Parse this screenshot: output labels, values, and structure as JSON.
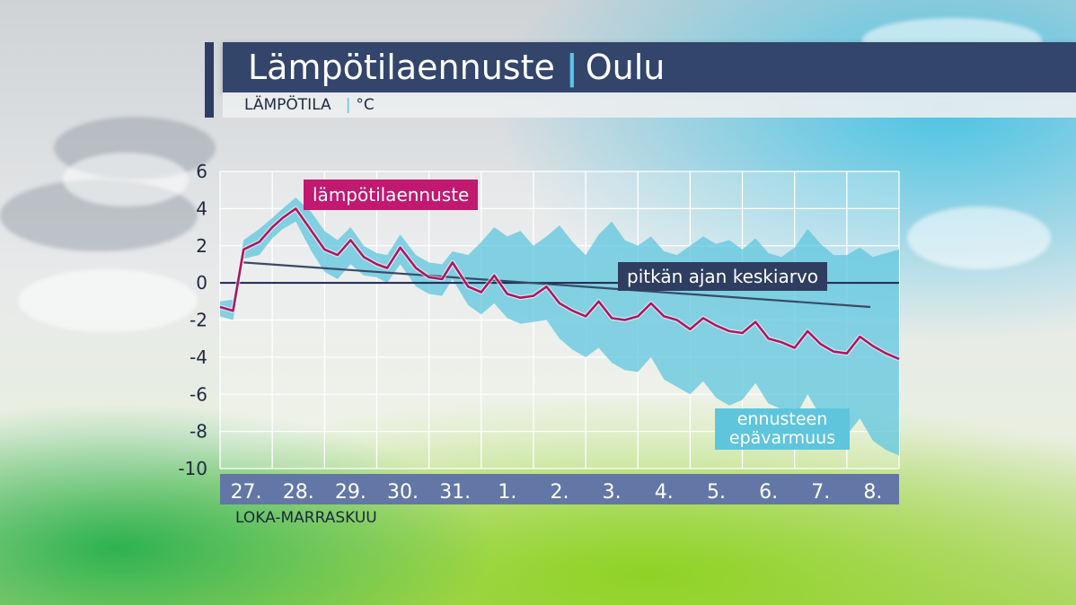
{
  "header": {
    "title": "Lämpötilaennuste",
    "title_separator": "|",
    "location": "Oulu",
    "subtitle": "LÄMPÖTILA",
    "subtitle_separator": "|",
    "unit": "°C"
  },
  "caption": "LOKA-MARRASKUU",
  "labels": {
    "forecast": "lämpötilaennuste",
    "long_term_mean": "pitkän ajan keskiarvo",
    "uncertainty_line1": "ennusteen",
    "uncertainty_line2": "epävarmuus"
  },
  "colors": {
    "forecast_line": "#b3145f",
    "forecast_label_bg": "#c0196f",
    "mean_line": "#3a4a66",
    "zero_line": "#1c2552",
    "uncertainty_band": "#5ec5dd",
    "axis_bar": "#6277a6",
    "title_bar": "#33456b"
  },
  "chart_data": {
    "type": "line",
    "ylim": [
      -10,
      6
    ],
    "yticks": [
      6,
      4,
      2,
      0,
      -2,
      -4,
      -6,
      -8,
      -10
    ],
    "xlim": [
      0,
      13
    ],
    "categories": [
      "27.",
      "28.",
      "29.",
      "30.",
      "31.",
      "1.",
      "2.",
      "3.",
      "4.",
      "5.",
      "6.",
      "7.",
      "8."
    ],
    "grid": true,
    "series": [
      {
        "name": "lämpötilaennuste",
        "x": [
          0,
          0.25,
          0.45,
          0.75,
          1.0,
          1.2,
          1.45,
          1.75,
          2.0,
          2.25,
          2.5,
          2.75,
          3.0,
          3.2,
          3.45,
          3.75,
          4.0,
          4.25,
          4.45,
          4.75,
          5.0,
          5.25,
          5.5,
          5.75,
          6.0,
          6.25,
          6.5,
          6.75,
          7.0,
          7.25,
          7.5,
          7.75,
          8.0,
          8.25,
          8.5,
          8.75,
          9.0,
          9.25,
          9.5,
          9.75,
          10.0,
          10.25,
          10.5,
          10.75,
          11.0,
          11.25,
          11.5,
          11.75,
          12.0,
          12.25,
          12.5,
          12.75,
          13.0
        ],
        "y": [
          -1.3,
          -1.5,
          1.8,
          2.2,
          3.0,
          3.5,
          4.0,
          2.8,
          1.8,
          1.5,
          2.3,
          1.4,
          1.0,
          0.8,
          1.9,
          0.8,
          0.3,
          0.2,
          1.1,
          -0.2,
          -0.5,
          0.4,
          -0.6,
          -0.8,
          -0.7,
          -0.2,
          -1.1,
          -1.5,
          -1.8,
          -1.0,
          -1.9,
          -2.0,
          -1.8,
          -1.1,
          -1.8,
          -2.0,
          -2.5,
          -1.9,
          -2.3,
          -2.6,
          -2.7,
          -2.1,
          -3.0,
          -3.2,
          -3.5,
          -2.6,
          -3.3,
          -3.7,
          -3.8,
          -2.9,
          -3.4,
          -3.8,
          -4.1
        ]
      },
      {
        "name": "pitkän ajan keskiarvo",
        "x": [
          0.45,
          12.45
        ],
        "y": [
          1.1,
          -1.3
        ]
      }
    ],
    "bands": [
      {
        "name": "ennusteen epävarmuus",
        "x": [
          0,
          0.25,
          0.45,
          0.75,
          1.0,
          1.2,
          1.45,
          1.75,
          2.0,
          2.25,
          2.5,
          2.75,
          3.0,
          3.2,
          3.45,
          3.75,
          4.0,
          4.25,
          4.45,
          4.75,
          5.0,
          5.25,
          5.5,
          5.75,
          6.0,
          6.25,
          6.5,
          6.75,
          7.0,
          7.25,
          7.5,
          7.75,
          8.0,
          8.25,
          8.5,
          8.75,
          9.0,
          9.25,
          9.5,
          9.75,
          10.0,
          10.25,
          10.5,
          10.75,
          11.0,
          11.25,
          11.5,
          11.75,
          12.0,
          12.25,
          12.5,
          12.75,
          13.0
        ],
        "upper": [
          -1.0,
          -0.9,
          2.3,
          2.9,
          3.5,
          4.0,
          4.6,
          3.8,
          2.8,
          2.3,
          3.0,
          2.0,
          1.6,
          1.5,
          2.6,
          1.5,
          1.1,
          1.0,
          1.7,
          1.5,
          2.2,
          3.0,
          2.5,
          2.8,
          2.0,
          2.5,
          3.1,
          2.2,
          1.5,
          2.6,
          3.3,
          2.3,
          2.0,
          2.5,
          1.7,
          1.5,
          2.0,
          2.5,
          2.1,
          2.3,
          1.8,
          2.4,
          1.6,
          1.4,
          1.9,
          2.9,
          2.1,
          1.5,
          1.5,
          1.9,
          1.4,
          1.6,
          1.8
        ],
        "lower": [
          -1.8,
          -2.0,
          1.3,
          1.5,
          2.4,
          2.9,
          3.3,
          1.7,
          0.6,
          0.2,
          1.0,
          0.4,
          0.3,
          0.0,
          1.0,
          -0.2,
          -0.6,
          -0.7,
          0.2,
          -1.2,
          -1.7,
          -1.1,
          -1.9,
          -2.2,
          -2.1,
          -2.0,
          -3.0,
          -3.6,
          -4.0,
          -3.5,
          -4.3,
          -4.7,
          -4.8,
          -4.0,
          -5.2,
          -5.6,
          -6.0,
          -5.3,
          -6.2,
          -6.6,
          -6.3,
          -5.4,
          -6.5,
          -6.8,
          -7.3,
          -6.0,
          -7.2,
          -8.0,
          -8.2,
          -7.3,
          -8.5,
          -9.0,
          -9.3
        ]
      }
    ]
  }
}
